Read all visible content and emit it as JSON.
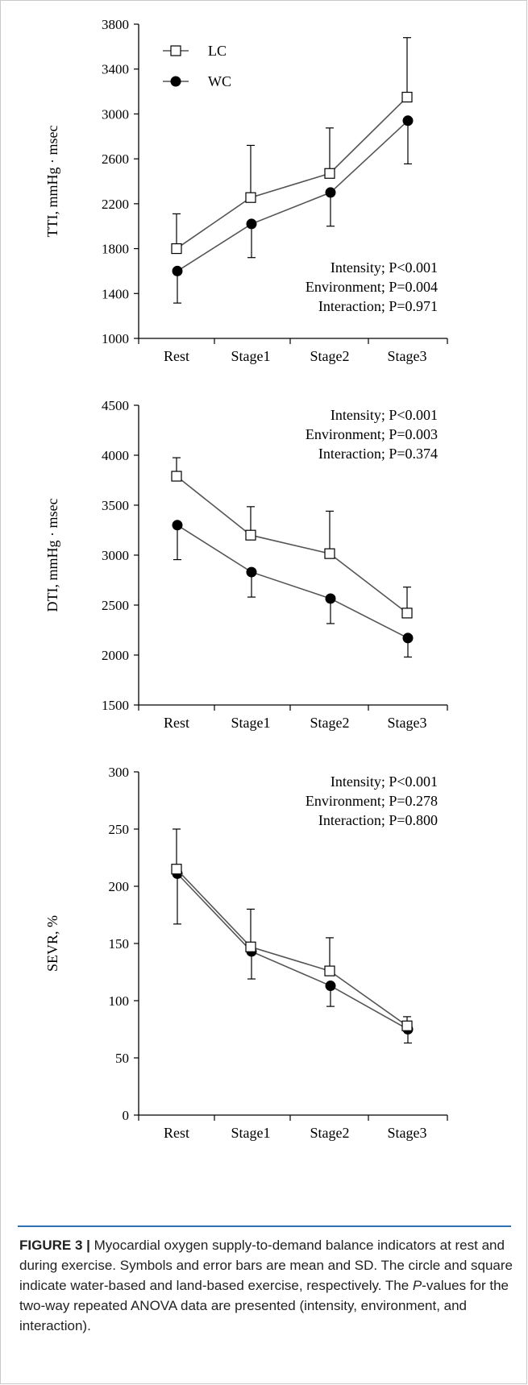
{
  "chart_data": [
    {
      "type": "line",
      "ylabel": "TTI, mmHg · msec",
      "ylim": [
        1000,
        3800
      ],
      "ytick_values": [
        1000,
        1400,
        1800,
        2200,
        2600,
        3000,
        3400,
        3800
      ],
      "categories": [
        "Rest",
        "Stage1",
        "Stage2",
        "Stage3"
      ],
      "legend": {
        "placement": "top-left",
        "entries": [
          "LC",
          "WC"
        ]
      },
      "series": [
        {
          "name": "LC",
          "marker": "square-open",
          "values": [
            1800,
            2255,
            2470,
            3150
          ],
          "sd": [
            310,
            465,
            405,
            530
          ]
        },
        {
          "name": "WC",
          "marker": "circle-filled",
          "values": [
            1600,
            2020,
            2300,
            2940
          ],
          "sd": [
            285,
            300,
            300,
            385
          ]
        }
      ],
      "annotations": [
        "Intensity; P<0.001",
        "Environment; P=0.004",
        "Interaction; P=0.971"
      ]
    },
    {
      "type": "line",
      "ylabel": "DTI, mmHg · msec",
      "ylim": [
        1500,
        4500
      ],
      "ytick_values": [
        1500,
        2000,
        2500,
        3000,
        3500,
        4000,
        4500
      ],
      "categories": [
        "Rest",
        "Stage1",
        "Stage2",
        "Stage3"
      ],
      "series": [
        {
          "name": "LC",
          "marker": "square-open",
          "values": [
            3790,
            3200,
            3015,
            2420
          ],
          "sd": [
            185,
            285,
            425,
            260
          ]
        },
        {
          "name": "WC",
          "marker": "circle-filled",
          "values": [
            3300,
            2830,
            2565,
            2170
          ],
          "sd": [
            345,
            250,
            250,
            190
          ]
        }
      ],
      "annotations": [
        "Intensity; P<0.001",
        "Environment; P=0.003",
        "Interaction; P=0.374"
      ]
    },
    {
      "type": "line",
      "ylabel": "SEVR, %",
      "ylim": [
        0,
        300
      ],
      "ytick_values": [
        0,
        50,
        100,
        150,
        200,
        250,
        300
      ],
      "categories": [
        "Rest",
        "Stage1",
        "Stage2",
        "Stage3"
      ],
      "series": [
        {
          "name": "LC",
          "marker": "square-open",
          "values": [
            215,
            147,
            126,
            78
          ],
          "sd": [
            35,
            33,
            29,
            8
          ]
        },
        {
          "name": "WC",
          "marker": "circle-filled",
          "values": [
            211,
            143,
            113,
            75
          ],
          "sd": [
            44,
            24,
            18,
            12
          ]
        }
      ],
      "annotations": [
        "Intensity; P<0.001",
        "Environment; P=0.278",
        "Interaction; P=0.800"
      ]
    }
  ],
  "caption": {
    "label": "FIGURE 3 |",
    "text": " Myocardial oxygen supply-to-demand balance indicators at rest and during exercise. Symbols and error bars are mean and SD. The circle and square indicate water-based and land-based exercise, respectively. The ",
    "italic": "P",
    "text_end": "-values for the two-way repeated ANOVA data are presented (intensity, environment, and interaction)."
  },
  "colors": {
    "line": "#555555",
    "marker_fill_wc": "#000000",
    "marker_fill_lc": "#ffffff",
    "caption_rule": "#2f6fb4"
  }
}
